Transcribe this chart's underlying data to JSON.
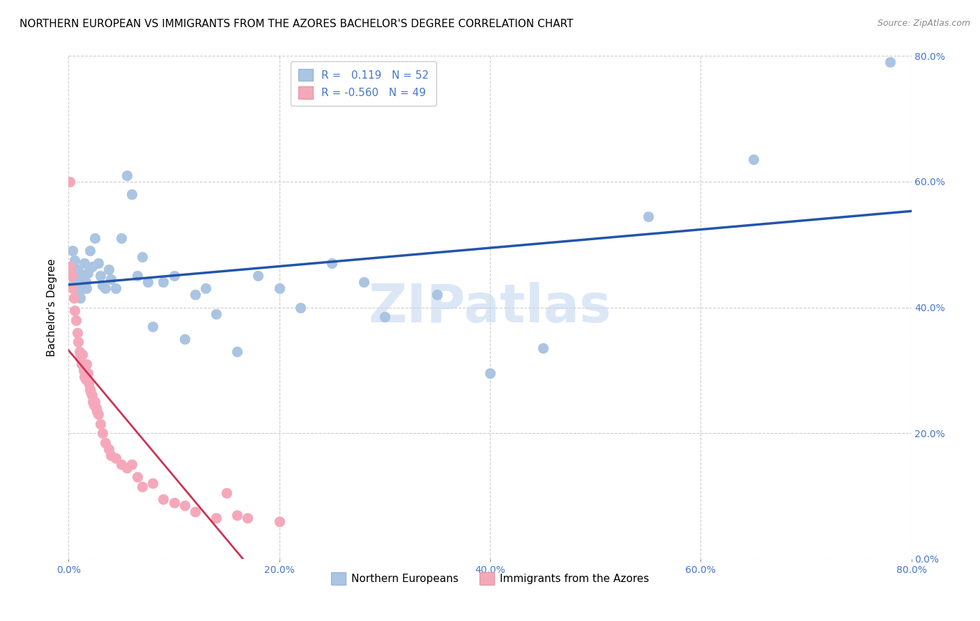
{
  "title": "NORTHERN EUROPEAN VS IMMIGRANTS FROM THE AZORES BACHELOR'S DEGREE CORRELATION CHART",
  "source": "Source: ZipAtlas.com",
  "ylabel": "Bachelor's Degree",
  "legend_label_blue": "Northern Europeans",
  "legend_label_pink": "Immigrants from the Azores",
  "r_blue": 0.119,
  "n_blue": 52,
  "r_pink": -0.56,
  "n_pink": 49,
  "blue_color": "#aac4e2",
  "pink_color": "#f5a8ba",
  "line_blue_color": "#2255aa",
  "line_pink_color": "#cc3355",
  "axis_tick_color": "#4477cc",
  "watermark": "ZIPatlas",
  "xlim": [
    0.0,
    0.8
  ],
  "ylim": [
    0.0,
    0.8
  ],
  "blue_x": [
    0.002,
    0.003,
    0.004,
    0.005,
    0.006,
    0.007,
    0.008,
    0.009,
    0.01,
    0.011,
    0.012,
    0.013,
    0.015,
    0.016,
    0.017,
    0.018,
    0.02,
    0.022,
    0.025,
    0.028,
    0.03,
    0.032,
    0.035,
    0.038,
    0.04,
    0.045,
    0.05,
    0.055,
    0.06,
    0.065,
    0.07,
    0.075,
    0.08,
    0.09,
    0.1,
    0.11,
    0.12,
    0.13,
    0.14,
    0.16,
    0.18,
    0.2,
    0.22,
    0.25,
    0.28,
    0.3,
    0.35,
    0.4,
    0.45,
    0.55,
    0.65,
    0.78
  ],
  "blue_y": [
    0.465,
    0.455,
    0.49,
    0.44,
    0.475,
    0.445,
    0.43,
    0.46,
    0.425,
    0.415,
    0.45,
    0.435,
    0.47,
    0.44,
    0.43,
    0.455,
    0.49,
    0.465,
    0.51,
    0.47,
    0.45,
    0.435,
    0.43,
    0.46,
    0.445,
    0.43,
    0.51,
    0.61,
    0.58,
    0.45,
    0.48,
    0.44,
    0.37,
    0.44,
    0.45,
    0.35,
    0.42,
    0.43,
    0.39,
    0.33,
    0.45,
    0.43,
    0.4,
    0.47,
    0.44,
    0.385,
    0.42,
    0.295,
    0.335,
    0.545,
    0.635,
    0.79
  ],
  "pink_x": [
    0.001,
    0.002,
    0.003,
    0.004,
    0.005,
    0.006,
    0.007,
    0.008,
    0.009,
    0.01,
    0.011,
    0.012,
    0.013,
    0.014,
    0.015,
    0.016,
    0.017,
    0.018,
    0.019,
    0.02,
    0.021,
    0.022,
    0.023,
    0.024,
    0.025,
    0.026,
    0.027,
    0.028,
    0.03,
    0.032,
    0.035,
    0.038,
    0.04,
    0.045,
    0.05,
    0.055,
    0.06,
    0.065,
    0.07,
    0.08,
    0.09,
    0.1,
    0.11,
    0.12,
    0.14,
    0.15,
    0.16,
    0.17,
    0.2
  ],
  "pink_y": [
    0.6,
    0.465,
    0.45,
    0.43,
    0.415,
    0.395,
    0.38,
    0.36,
    0.345,
    0.33,
    0.32,
    0.31,
    0.325,
    0.3,
    0.29,
    0.285,
    0.31,
    0.295,
    0.28,
    0.27,
    0.265,
    0.26,
    0.25,
    0.245,
    0.25,
    0.24,
    0.235,
    0.23,
    0.215,
    0.2,
    0.185,
    0.175,
    0.165,
    0.16,
    0.15,
    0.145,
    0.15,
    0.13,
    0.115,
    0.12,
    0.095,
    0.09,
    0.085,
    0.075,
    0.065,
    0.105,
    0.07,
    0.065,
    0.06
  ],
  "title_fontsize": 11,
  "axis_label_fontsize": 11,
  "tick_fontsize": 10,
  "legend_fontsize": 11
}
